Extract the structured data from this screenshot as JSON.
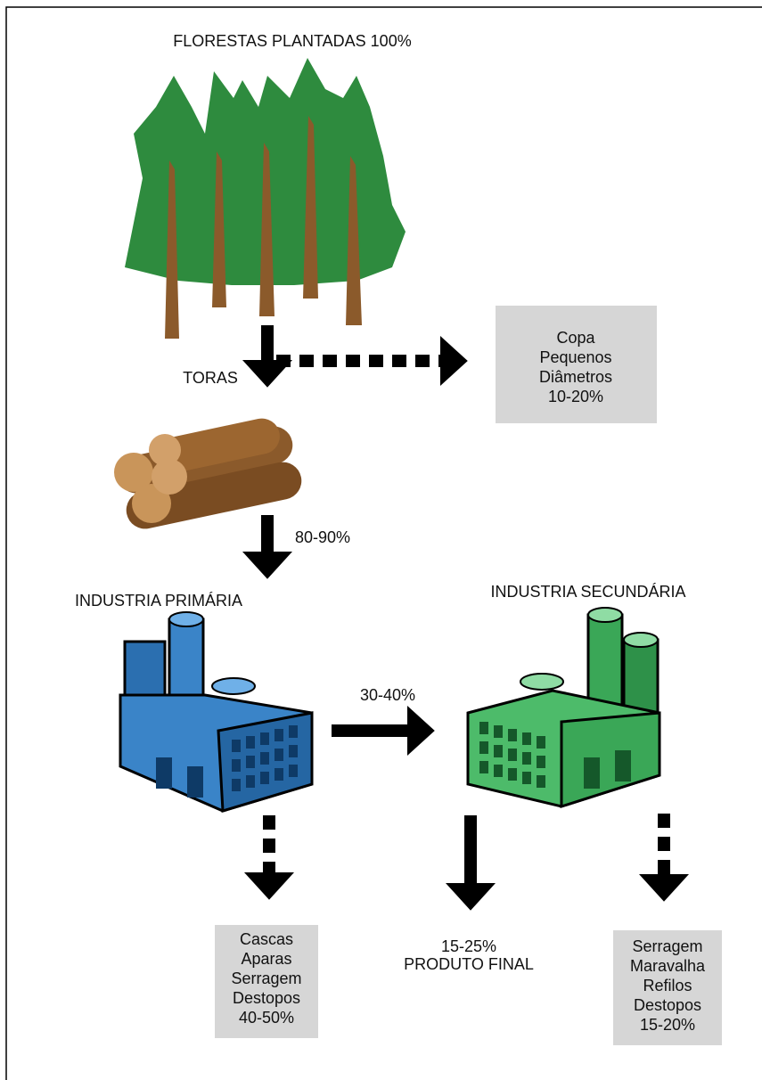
{
  "title": "FLORESTAS PLANTADAS 100%",
  "labels": {
    "toras": "TORAS",
    "logs_pct": "80-90%",
    "primary": "INDUSTRIA PRIMÁRIA",
    "secondary": "INDUSTRIA SECUNDÁRIA",
    "transfer_pct": "30-40%",
    "final_pct": "15-25%",
    "final": "PRODUTO FINAL"
  },
  "boxes": {
    "forest_waste": [
      "Copa",
      "Pequenos",
      "Diâmetros",
      "10-20%"
    ],
    "primary_waste": [
      "Cascas",
      "Aparas",
      "Serragem",
      "Destopos",
      "40-50%"
    ],
    "secondary_waste": [
      "Serragem",
      "Maravalha",
      "Refilos",
      "Destopos",
      "15-20%"
    ]
  }
}
